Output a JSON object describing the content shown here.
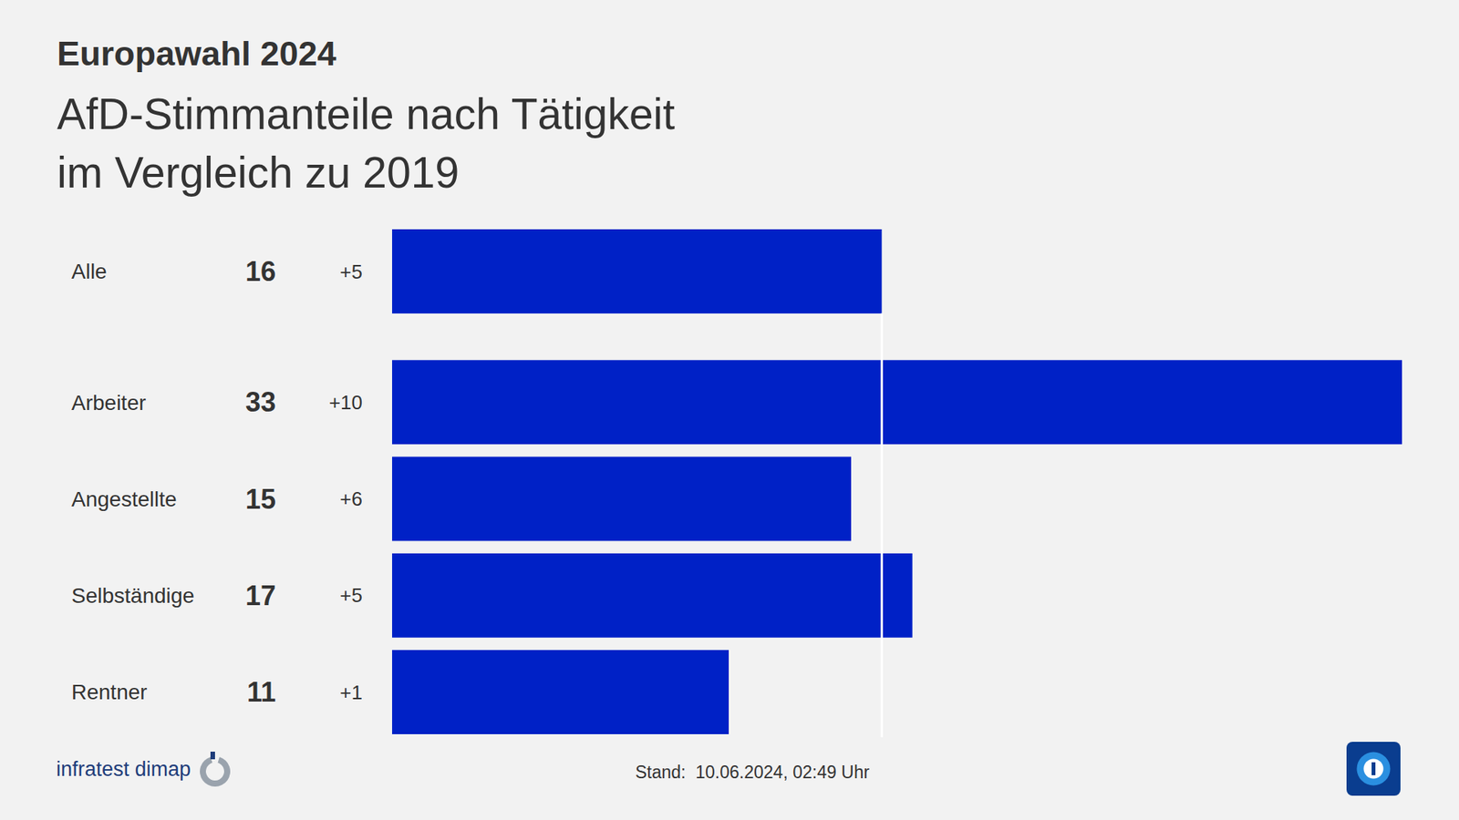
{
  "chart_data": {
    "type": "bar",
    "orientation": "horizontal",
    "header": "Europawahl 2024",
    "title": [
      "AfD-Stimmanteile nach Tätigkeit",
      "im Vergleich zu 2019"
    ],
    "categories": [
      "Alle",
      "Arbeiter",
      "Angestellte",
      "Selbständige",
      "Rentner"
    ],
    "values": [
      16,
      33,
      15,
      17,
      11
    ],
    "change_values": [
      5,
      10,
      6,
      5,
      1
    ],
    "change_labels": [
      "+5",
      "+10",
      "+6",
      "+5",
      "+1"
    ],
    "reference_line": 16,
    "color": "#0021c6",
    "xlim": [
      0,
      33
    ],
    "xticks": [],
    "tick_labels": false,
    "grid": false,
    "data_labels": true,
    "source": "infratest dimap",
    "timestamp": "Stand:  10.06.2024, 02:49 Uhr"
  }
}
